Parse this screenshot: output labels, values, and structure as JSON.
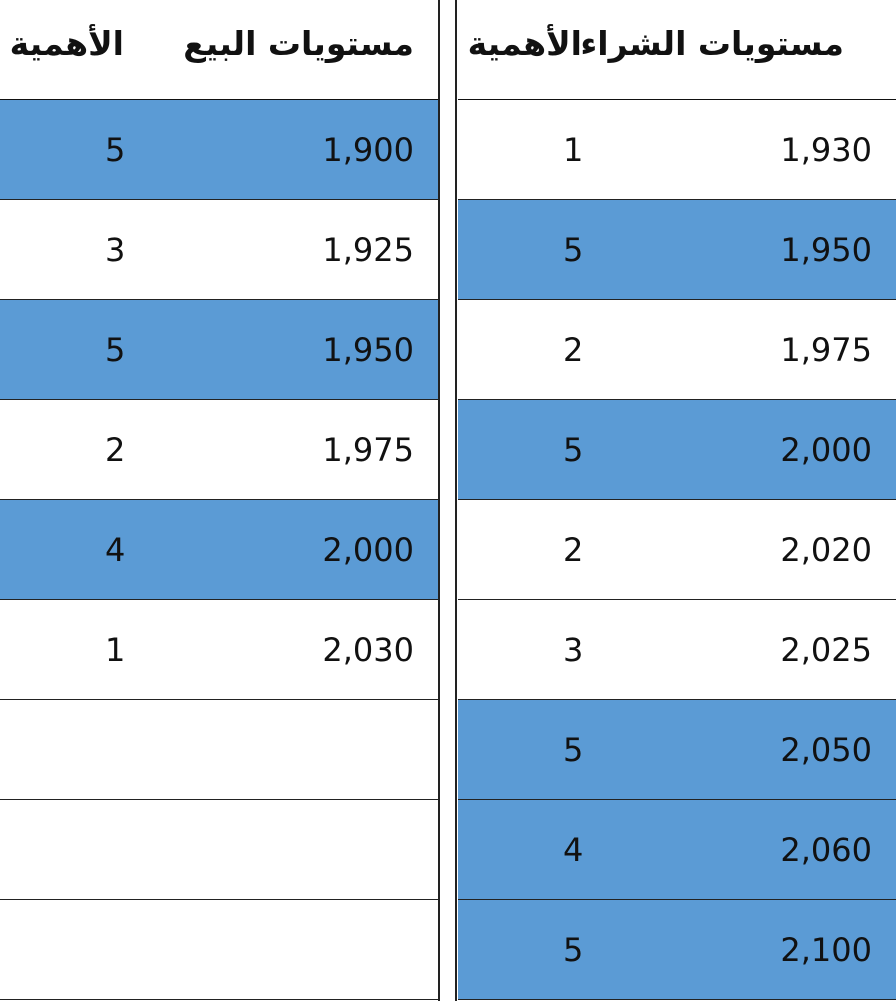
{
  "sell_table": {
    "headers": {
      "level": "مستويات البيع",
      "importance": "الأهمية"
    },
    "rows": [
      {
        "level": "1,900",
        "importance": "5",
        "highlighted": true
      },
      {
        "level": "1,925",
        "importance": "3",
        "highlighted": false
      },
      {
        "level": "1,950",
        "importance": "5",
        "highlighted": true
      },
      {
        "level": "1,975",
        "importance": "2",
        "highlighted": false
      },
      {
        "level": "2,000",
        "importance": "4",
        "highlighted": true
      },
      {
        "level": "2,030",
        "importance": "1",
        "highlighted": false
      },
      {
        "level": "",
        "importance": "",
        "highlighted": false
      },
      {
        "level": "",
        "importance": "",
        "highlighted": false
      },
      {
        "level": "",
        "importance": "",
        "highlighted": false
      }
    ]
  },
  "buy_table": {
    "headers": {
      "level": "مستويات الشراء",
      "importance": "الأهمية"
    },
    "rows": [
      {
        "level": "1,930",
        "importance": "1",
        "highlighted": false
      },
      {
        "level": "1,950",
        "importance": "5",
        "highlighted": true
      },
      {
        "level": "1,975",
        "importance": "2",
        "highlighted": false
      },
      {
        "level": "2,000",
        "importance": "5",
        "highlighted": true
      },
      {
        "level": "2,020",
        "importance": "2",
        "highlighted": false
      },
      {
        "level": "2,025",
        "importance": "3",
        "highlighted": false
      },
      {
        "level": "2,050",
        "importance": "5",
        "highlighted": true
      },
      {
        "level": "2,060",
        "importance": "4",
        "highlighted": true
      },
      {
        "level": "2,100",
        "importance": "5",
        "highlighted": true
      }
    ]
  },
  "colors": {
    "highlight": "#5b9bd5",
    "rule": "#222222",
    "background": "#ffffff"
  }
}
